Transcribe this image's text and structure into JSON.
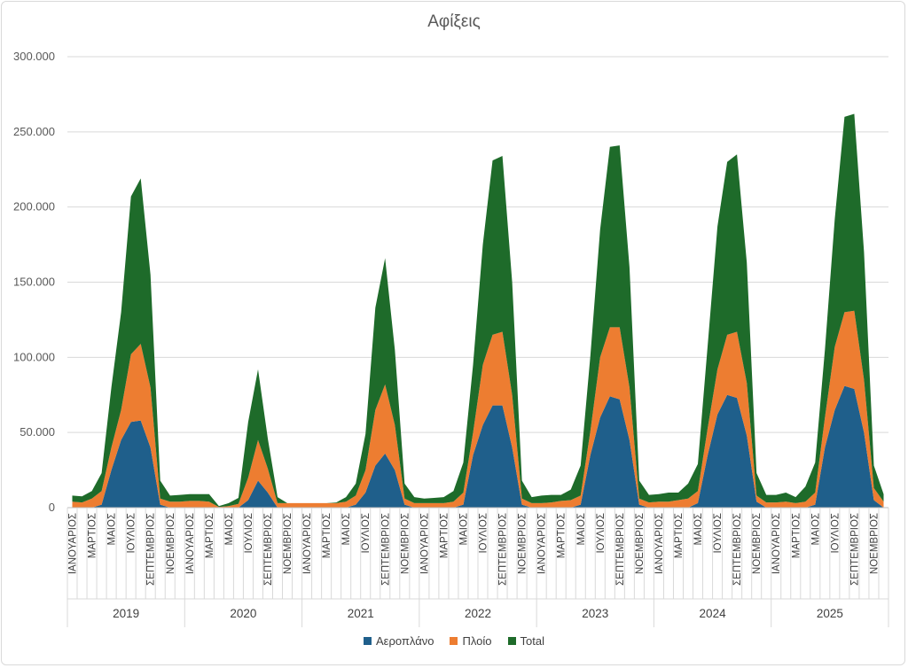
{
  "chart_data": {
    "type": "area",
    "title": "Αφίξεις",
    "ylim": [
      0,
      300000
    ],
    "yticks": [
      "0",
      "50.000",
      "100.000",
      "150.000",
      "200.000",
      "250.000",
      "300.000"
    ],
    "grid": true,
    "legend_position": "bottom",
    "stacked": true,
    "month_labels": [
      "ΙΑΝΟΥΑΡΙΟΣ",
      "ΜΑΡΤΙΟΣ",
      "ΜΑΙΟΣ",
      "ΙΟΥΛΙΟΣ",
      "ΣΕΠΤΕΜΒΡΙΟΣ",
      "ΝΟΕΜΒΡΙΟΣ"
    ],
    "years": [
      "2019",
      "2020",
      "2021",
      "2022",
      "2023",
      "2024",
      "2025"
    ],
    "months_per_year": 12,
    "series": [
      {
        "name": "Αεροπλάνο",
        "color": "#1f5f8b",
        "values": [
          0,
          0,
          0,
          2000,
          25000,
          45000,
          57000,
          58000,
          40000,
          2000,
          0,
          0,
          0,
          0,
          0,
          0,
          0,
          0,
          5000,
          18000,
          10000,
          0,
          0,
          0,
          0,
          0,
          0,
          0,
          0,
          2000,
          10000,
          28000,
          36000,
          25000,
          2000,
          0,
          0,
          0,
          0,
          0,
          2000,
          35000,
          55000,
          68000,
          68000,
          40000,
          2000,
          0,
          0,
          0,
          0,
          0,
          2000,
          35000,
          60000,
          74000,
          72000,
          45000,
          2000,
          0,
          0,
          0,
          0,
          0,
          3000,
          35000,
          62000,
          75000,
          73000,
          48000,
          4000,
          0,
          0,
          0,
          0,
          0,
          2000,
          40000,
          65000,
          81000,
          79000,
          50000,
          5000,
          0
        ]
      },
      {
        "name": "Πλοίο",
        "color": "#ed7d31",
        "values": [
          4000,
          3500,
          6000,
          9000,
          15000,
          20000,
          45000,
          51000,
          40000,
          4000,
          4000,
          4000,
          4500,
          4500,
          4000,
          500,
          1000,
          2500,
          15000,
          27000,
          16000,
          3000,
          3000,
          3000,
          3000,
          3000,
          3000,
          3000,
          4000,
          6000,
          15000,
          37000,
          46000,
          30000,
          4000,
          3000,
          3000,
          3000,
          3000,
          4000,
          8000,
          15000,
          40000,
          47000,
          49000,
          35000,
          4000,
          3000,
          3000,
          3500,
          4500,
          5000,
          6000,
          16000,
          40000,
          46000,
          48000,
          35000,
          4000,
          3500,
          4000,
          4000,
          5000,
          6000,
          8000,
          18000,
          30000,
          40000,
          44000,
          35000,
          4000,
          3500,
          3500,
          4000,
          3000,
          4000,
          8000,
          20000,
          42000,
          49000,
          52000,
          35000,
          8000,
          4000
        ]
      },
      {
        "name": "Total",
        "color": "#1e6b2a",
        "values": [
          4000,
          4000,
          5000,
          12000,
          40000,
          65000,
          105000,
          110000,
          75000,
          12000,
          4000,
          4500,
          4500,
          4500,
          5000,
          500,
          2000,
          4000,
          37000,
          47000,
          20000,
          4000,
          0,
          0,
          0,
          0,
          0,
          500,
          3000,
          8000,
          24000,
          68000,
          84000,
          50000,
          10000,
          4000,
          3000,
          3500,
          4000,
          7000,
          20000,
          45000,
          80000,
          116000,
          117000,
          75000,
          12000,
          4000,
          5000,
          5000,
          4000,
          7000,
          20000,
          50000,
          85000,
          120000,
          121000,
          80000,
          12000,
          5000,
          5000,
          6000,
          5000,
          10000,
          18000,
          55000,
          95000,
          115000,
          118000,
          80000,
          15000,
          5000,
          5000,
          6000,
          4000,
          10000,
          20000,
          45000,
          85000,
          130000,
          131000,
          85000,
          15000,
          5000
        ]
      }
    ]
  }
}
